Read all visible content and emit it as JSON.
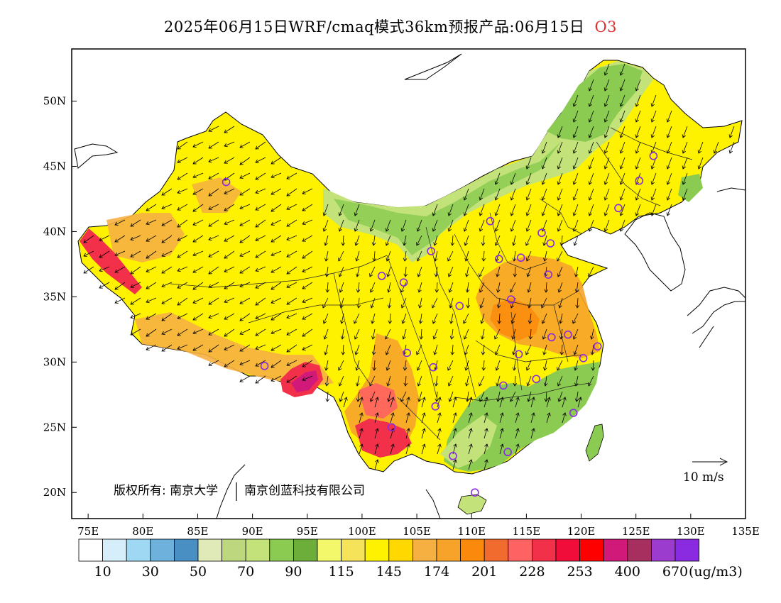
{
  "title": {
    "main": "2025年06月15日WRF/cmaq模式36km预报产品:06月15日",
    "species": "O3"
  },
  "axes": {
    "x_ticks": [
      "75E",
      "80E",
      "85E",
      "90E",
      "95E",
      "100E",
      "105E",
      "110E",
      "115E",
      "120E",
      "125E",
      "130E",
      "135E"
    ],
    "y_ticks": [
      "20N",
      "25N",
      "30N",
      "35N",
      "40N",
      "45N",
      "50N"
    ]
  },
  "copyright": {
    "part1": "版权所有: 南京大学",
    "part2": "南京创蓝科技有限公司"
  },
  "wind_reference": {
    "label": "10  m/s"
  },
  "legend": {
    "unit": "(ug/m3)",
    "colors": [
      "#ffffff",
      "#d6eef9",
      "#9fd8f2",
      "#6fb1dd",
      "#4a8fc4",
      "#dfeab8",
      "#bcd77d",
      "#c4e27a",
      "#8ccb52",
      "#6dae3a",
      "#f3f86a",
      "#f5e45a",
      "#fff200",
      "#ffd800",
      "#f6b042",
      "#f7a32a",
      "#fb8a0c",
      "#f26b2e",
      "#ff6262",
      "#f3304a",
      "#f00d3a",
      "#ff0000",
      "#d1197a",
      "#a72f60",
      "#9b3ccf",
      "#8a2be2"
    ],
    "labels": [
      "10",
      "30",
      "50",
      "70",
      "90",
      "115",
      "145",
      "174",
      "201",
      "228",
      "253",
      "400",
      "670"
    ]
  },
  "city_markers": [
    [
      87.6,
      43.8
    ],
    [
      91.1,
      29.7
    ],
    [
      101.8,
      36.6
    ],
    [
      103.8,
      36.1
    ],
    [
      106.3,
      38.5
    ],
    [
      111.7,
      40.8
    ],
    [
      116.4,
      39.9
    ],
    [
      117.2,
      39.1
    ],
    [
      114.5,
      38.0
    ],
    [
      112.5,
      37.9
    ],
    [
      113.6,
      34.8
    ],
    [
      117.0,
      36.7
    ],
    [
      104.1,
      30.7
    ],
    [
      106.5,
      29.6
    ],
    [
      108.9,
      34.3
    ],
    [
      114.3,
      30.6
    ],
    [
      117.3,
      31.9
    ],
    [
      118.8,
      32.1
    ],
    [
      121.5,
      31.2
    ],
    [
      120.2,
      30.3
    ],
    [
      115.9,
      28.7
    ],
    [
      112.9,
      28.2
    ],
    [
      106.7,
      26.6
    ],
    [
      102.7,
      25.0
    ],
    [
      108.3,
      22.8
    ],
    [
      113.3,
      23.1
    ],
    [
      119.3,
      26.1
    ],
    [
      110.3,
      20.0
    ],
    [
      123.4,
      41.8
    ],
    [
      125.3,
      43.9
    ],
    [
      126.6,
      45.8
    ]
  ]
}
